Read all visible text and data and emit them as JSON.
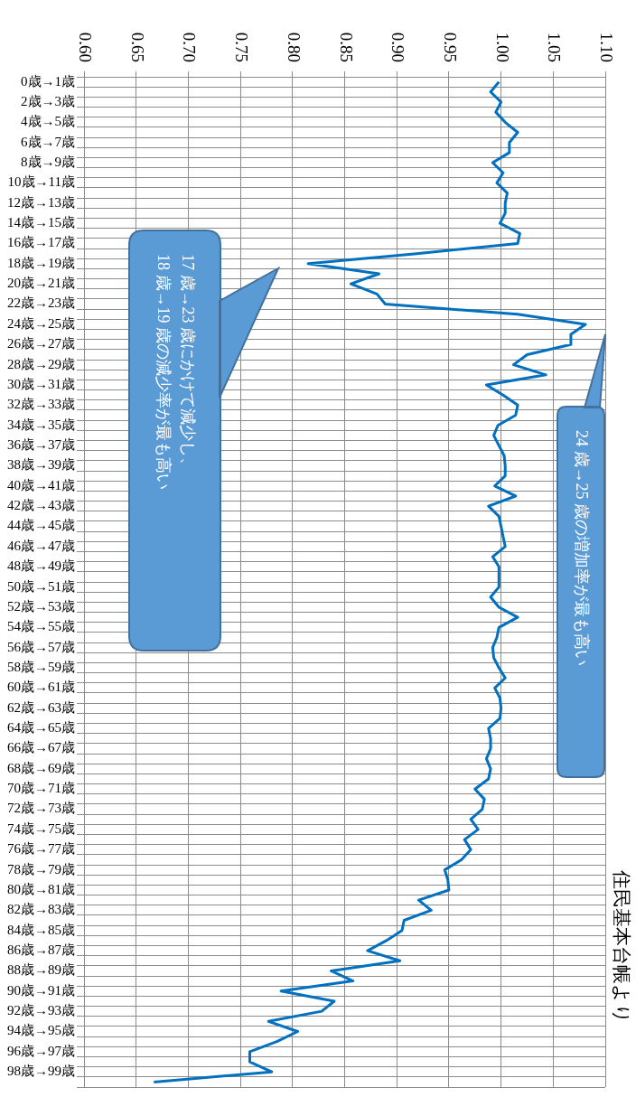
{
  "chart_data": {
    "type": "line",
    "orientation": "horizontal",
    "categories": [
      "0歳→1歳",
      null,
      "2歳→3歳",
      null,
      "4歳→5歳",
      null,
      "6歳→7歳",
      null,
      "8歳→9歳",
      null,
      "10歳→11歳",
      null,
      "12歳→13歳",
      null,
      "14歳→15歳",
      null,
      "16歳→17歳",
      null,
      "18歳→19歳",
      null,
      "20歳→21歳",
      null,
      "22歳→23歳",
      null,
      "24歳→25歳",
      null,
      "26歳→27歳",
      null,
      "28歳→29歳",
      null,
      "30歳→31歳",
      null,
      "32歳→33歳",
      null,
      "34歳→35歳",
      null,
      "36歳→37歳",
      null,
      "38歳→39歳",
      null,
      "40歳→41歳",
      null,
      "42歳→43歳",
      null,
      "44歳→45歳",
      null,
      "46歳→47歳",
      null,
      "48歳→49歳",
      null,
      "50歳→51歳",
      null,
      "52歳→53歳",
      null,
      "54歳→55歳",
      null,
      "56歳→57歳",
      null,
      "58歳→59歳",
      null,
      "60歳→61歳",
      null,
      "62歳→63歳",
      null,
      "64歳→65歳",
      null,
      "66歳→67歳",
      null,
      "68歳→69歳",
      null,
      "70歳→71歳",
      null,
      "72歳→73歳",
      null,
      "74歳→75歳",
      null,
      "76歳→77歳",
      null,
      "78歳→79歳",
      null,
      "80歳→81歳",
      null,
      "82歳→83歳",
      null,
      "84歳→85歳",
      null,
      "86歳→87歳",
      null,
      "88歳→89歳",
      null,
      "90歳→91歳",
      null,
      "92歳→93歳",
      null,
      "94歳→95歳",
      null,
      "96歳→97歳",
      null,
      "98歳→99歳",
      null
    ],
    "series": [
      {
        "color": "#0070c0",
        "values": [
          0.998,
          0.99,
          1.0,
          0.995,
          1.004,
          1.016,
          1.008,
          1.008,
          0.992,
          1.002,
          0.996,
          1.006,
          1.004,
          1.004,
          0.999,
          1.018,
          1.016,
          0.919,
          0.815,
          0.883,
          0.856,
          0.881,
          0.889,
          1.016,
          1.081,
          1.067,
          1.067,
          1.025,
          1.012,
          1.043,
          0.986,
          1.002,
          1.016,
          1.014,
          0.997,
          0.993,
          0.998,
          1.003,
          1.004,
          1.004,
          0.994,
          1.014,
          0.988,
          0.998,
          1.0,
          1.002,
          1.004,
          0.992,
          0.998,
          0.998,
          0.998,
          0.99,
          0.998,
          1.016,
          0.998,
          0.996,
          0.992,
          0.993,
          0.998,
          1.004,
          0.994,
          0.999,
          1.0,
          0.999,
          0.988,
          0.99,
          0.99,
          0.986,
          0.99,
          0.988,
          0.975,
          0.984,
          0.982,
          0.971,
          0.978,
          0.965,
          0.971,
          0.962,
          0.946,
          0.949,
          0.95,
          0.921,
          0.933,
          0.907,
          0.905,
          0.89,
          0.872,
          0.903,
          0.837,
          0.858,
          0.789,
          0.84,
          0.828,
          0.777,
          0.805,
          0.785,
          0.759,
          0.759,
          0.78,
          0.667
        ]
      }
    ],
    "xlim": [
      0.6,
      1.1
    ],
    "xticks": [
      {
        "value": 0.6,
        "label": "0.60"
      },
      0.65,
      {
        "value": 0.7,
        "label": "0.70"
      },
      0.75,
      {
        "value": 0.8,
        "label": "0.80"
      },
      0.85,
      {
        "value": 0.9,
        "label": "0.90"
      },
      0.95,
      {
        "value": 1.0,
        "label": "1.00"
      },
      1.05,
      {
        "value": 1.1,
        "label": "1.10"
      }
    ],
    "grid": true,
    "legend": false,
    "marker": "none",
    "line_style": "solid",
    "annotations": [
      "17 歳→23 歳にかけて減少し、\n18 歳→19 歳の減少率が最も高い",
      "24 歳→25 歳の増加率が最も高い",
      "住民基本台帳より"
    ]
  }
}
